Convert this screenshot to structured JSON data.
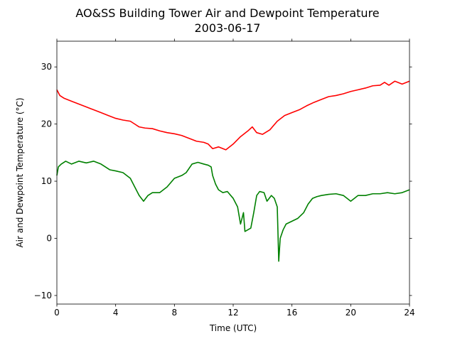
{
  "chart_data": {
    "type": "line",
    "title": "AO&SS Building Tower Air and Dewpoint Temperature",
    "subtitle": "2003-06-17",
    "xlabel": "Time (UTC)",
    "ylabel": "Air and Dewpoint Temperature (°C)",
    "xlim": [
      0,
      24
    ],
    "ylim": [
      -11.5,
      34.5
    ],
    "xticks": [
      0,
      4,
      8,
      12,
      16,
      20,
      24
    ],
    "yticks": [
      -10,
      0,
      10,
      20,
      30
    ],
    "grid": false,
    "legend": "none",
    "series": [
      {
        "color": "#ff0000",
        "x": [
          0,
          0.2,
          0.5,
          1,
          1.5,
          2,
          2.5,
          3,
          3.5,
          4,
          4.5,
          5,
          5.3,
          5.6,
          6,
          6.5,
          7,
          7.5,
          8,
          8.5,
          9,
          9.5,
          10,
          10.3,
          10.6,
          11,
          11.5,
          12,
          12.5,
          13,
          13.3,
          13.6,
          14,
          14.5,
          15,
          15.5,
          16,
          16.5,
          17,
          17.5,
          18,
          18.5,
          19,
          19.5,
          20,
          20.5,
          21,
          21.5,
          22,
          22.3,
          22.6,
          23,
          23.5,
          24
        ],
        "y": [
          26,
          25,
          24.5,
          24,
          23.5,
          23,
          22.5,
          22,
          21.5,
          21,
          20.7,
          20.5,
          20,
          19.5,
          19.3,
          19.2,
          18.8,
          18.5,
          18.3,
          18,
          17.5,
          17,
          16.8,
          16.5,
          15.7,
          16,
          15.5,
          16.5,
          17.8,
          18.8,
          19.5,
          18.5,
          18.2,
          19,
          20.5,
          21.5,
          22,
          22.5,
          23.2,
          23.8,
          24.3,
          24.8,
          25,
          25.3,
          25.7,
          26,
          26.3,
          26.7,
          26.8,
          27.3,
          26.8,
          27.5,
          27,
          27.5
        ]
      },
      {
        "color": "#008000",
        "x": [
          0,
          0.1,
          0.3,
          0.6,
          1,
          1.5,
          2,
          2.5,
          3,
          3.3,
          3.6,
          4,
          4.5,
          5,
          5.3,
          5.6,
          5.9,
          6.2,
          6.5,
          7,
          7.5,
          8,
          8.5,
          8.8,
          9.2,
          9.6,
          10,
          10.3,
          10.5,
          10.6,
          10.8,
          11,
          11.3,
          11.6,
          12,
          12.3,
          12.5,
          12.7,
          12.8,
          13,
          13.2,
          13.4,
          13.6,
          13.8,
          14.1,
          14.3,
          14.6,
          14.8,
          15,
          15.1,
          15.2,
          15.4,
          15.6,
          16,
          16.4,
          16.8,
          17.1,
          17.4,
          17.7,
          18,
          18.5,
          19,
          19.5,
          20,
          20.5,
          21,
          21.5,
          22,
          22.5,
          23,
          23.5,
          24
        ],
        "y": [
          11,
          12.5,
          13,
          13.5,
          13,
          13.5,
          13.2,
          13.5,
          13,
          12.5,
          12,
          11.8,
          11.5,
          10.5,
          9,
          7.5,
          6.5,
          7.5,
          8,
          8,
          9,
          10.5,
          11,
          11.5,
          13,
          13.3,
          13,
          12.8,
          12.5,
          11,
          9.5,
          8.5,
          8,
          8.2,
          7,
          5.5,
          2.5,
          4.5,
          1.2,
          1.5,
          1.8,
          4.5,
          7.5,
          8.2,
          8,
          6.5,
          7.5,
          7,
          5.5,
          -4,
          0,
          1.5,
          2.5,
          3,
          3.5,
          4.5,
          6,
          7,
          7.3,
          7.5,
          7.7,
          7.8,
          7.5,
          6.5,
          7.5,
          7.5,
          7.8,
          7.8,
          8,
          7.8,
          8,
          8.5
        ]
      }
    ]
  }
}
